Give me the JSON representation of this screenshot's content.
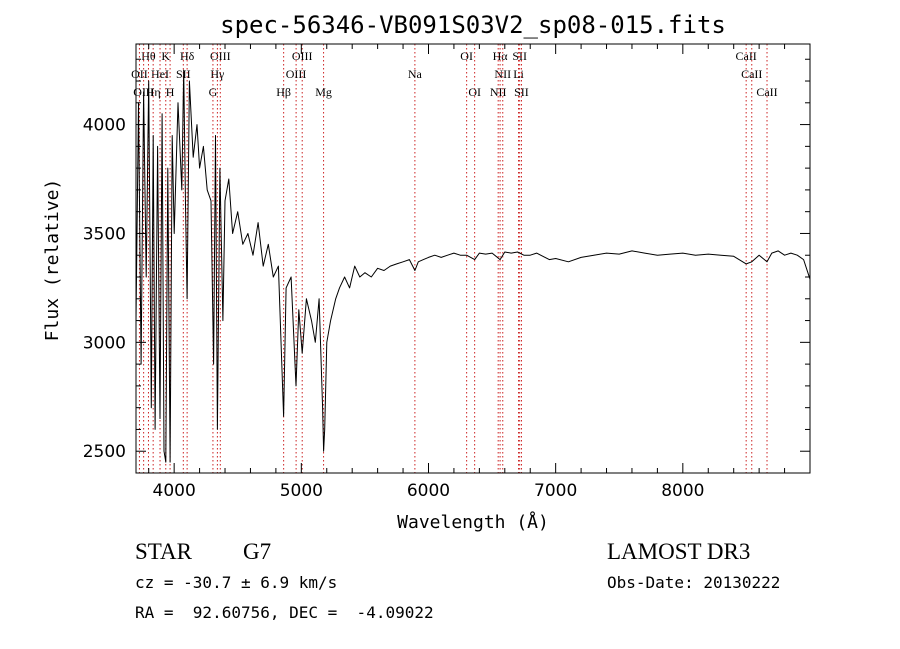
{
  "chart_data": {
    "type": "line",
    "title": "spec-56346-VB091S03V2_sp08-015.fits",
    "xlabel": "Wavelength (Å)",
    "ylabel": "Flux (relative)",
    "xlim": [
      3700,
      9000
    ],
    "ylim": [
      2400,
      4370
    ],
    "xticks": [
      4000,
      5000,
      6000,
      7000,
      8000
    ],
    "yticks": [
      2500,
      3000,
      3500,
      4000
    ],
    "colors": {
      "spectrum": "#000000",
      "lines": "#cc2222",
      "axes": "#000000"
    },
    "spectrum": {
      "name": "flux",
      "x": [
        3700,
        3720,
        3740,
        3760,
        3780,
        3800,
        3820,
        3835,
        3850,
        3870,
        3889,
        3905,
        3920,
        3934,
        3950,
        3968,
        3985,
        4000,
        4030,
        4060,
        4075,
        4090,
        4102,
        4120,
        4150,
        4180,
        4200,
        4230,
        4260,
        4290,
        4310,
        4325,
        4340,
        4360,
        4383,
        4400,
        4430,
        4460,
        4500,
        4540,
        4580,
        4620,
        4660,
        4700,
        4740,
        4780,
        4820,
        4861,
        4880,
        4920,
        4958,
        4980,
        5007,
        5040,
        5080,
        5110,
        5140,
        5167,
        5175,
        5184,
        5200,
        5230,
        5270,
        5300,
        5340,
        5380,
        5420,
        5460,
        5500,
        5550,
        5600,
        5650,
        5700,
        5750,
        5800,
        5850,
        5893,
        5920,
        5960,
        6000,
        6050,
        6100,
        6150,
        6200,
        6250,
        6300,
        6363,
        6400,
        6450,
        6500,
        6563,
        6600,
        6650,
        6700,
        6750,
        6800,
        6850,
        6900,
        6950,
        7000,
        7100,
        7200,
        7300,
        7400,
        7500,
        7600,
        7700,
        7800,
        7900,
        8000,
        8100,
        8200,
        8300,
        8400,
        8498,
        8542,
        8600,
        8662,
        8700,
        8750,
        8800,
        8850,
        8900,
        8950,
        9000
      ],
      "y": [
        3100,
        4100,
        2900,
        4150,
        3300,
        4200,
        2700,
        3950,
        2600,
        3900,
        2650,
        4050,
        2500,
        2450,
        3800,
        2450,
        3950,
        3500,
        4100,
        3700,
        4250,
        3600,
        3200,
        4200,
        3850,
        4000,
        3800,
        3900,
        3700,
        3650,
        2900,
        3950,
        2600,
        3800,
        3100,
        3650,
        3750,
        3500,
        3600,
        3450,
        3500,
        3400,
        3550,
        3350,
        3450,
        3300,
        3350,
        2660,
        3250,
        3300,
        2800,
        3150,
        2950,
        3200,
        3100,
        3000,
        3200,
        2700,
        2500,
        2600,
        3000,
        3100,
        3200,
        3250,
        3300,
        3250,
        3350,
        3300,
        3320,
        3300,
        3340,
        3330,
        3350,
        3360,
        3370,
        3380,
        3330,
        3370,
        3380,
        3390,
        3400,
        3390,
        3400,
        3410,
        3400,
        3400,
        3380,
        3410,
        3405,
        3410,
        3380,
        3415,
        3410,
        3415,
        3400,
        3400,
        3410,
        3395,
        3380,
        3385,
        3370,
        3390,
        3400,
        3410,
        3405,
        3420,
        3410,
        3400,
        3405,
        3410,
        3400,
        3405,
        3400,
        3395,
        3360,
        3370,
        3400,
        3370,
        3410,
        3420,
        3400,
        3410,
        3400,
        3380,
        3290
      ]
    },
    "spectral_lines": [
      {
        "label": "Hθ",
        "x": 3798,
        "row": 0
      },
      {
        "label": "K",
        "x": 3934,
        "row": 0
      },
      {
        "label": "Hδ",
        "x": 4102,
        "row": 0
      },
      {
        "label": "OIII",
        "x": 4363,
        "row": 0
      },
      {
        "label": "OIII",
        "x": 5007,
        "row": 0
      },
      {
        "label": "OI",
        "x": 6300,
        "row": 0
      },
      {
        "label": "Hα",
        "x": 6563,
        "row": 0
      },
      {
        "label": "SII",
        "x": 6717,
        "row": 0
      },
      {
        "label": "CaII",
        "x": 8498,
        "row": 0
      },
      {
        "label": "OII",
        "x": 3727,
        "row": 1
      },
      {
        "label": "HeI",
        "x": 3889,
        "row": 1
      },
      {
        "label": "SII",
        "x": 4072,
        "row": 1
      },
      {
        "label": "Hγ",
        "x": 4340,
        "row": 1
      },
      {
        "label": "OIII",
        "x": 4959,
        "row": 1
      },
      {
        "label": "Na",
        "x": 5893,
        "row": 1
      },
      {
        "label": "NII",
        "x": 6584,
        "row": 1
      },
      {
        "label": "Li",
        "x": 6708,
        "row": 1
      },
      {
        "label": "CaII",
        "x": 8542,
        "row": 1
      },
      {
        "label": "OIII",
        "x": 3760,
        "row": 2
      },
      {
        "label": "Hη",
        "x": 3835,
        "row": 2
      },
      {
        "label": "H",
        "x": 3968,
        "row": 2
      },
      {
        "label": "G",
        "x": 4305,
        "row": 2
      },
      {
        "label": "Hβ",
        "x": 4861,
        "row": 2
      },
      {
        "label": "Mg",
        "x": 5175,
        "row": 2
      },
      {
        "label": "OI",
        "x": 6363,
        "row": 2
      },
      {
        "label": "NII",
        "x": 6548,
        "row": 2
      },
      {
        "label": "SII",
        "x": 6731,
        "row": 2
      },
      {
        "label": "CaII",
        "x": 8662,
        "row": 2
      }
    ]
  },
  "info": {
    "object_type": "STAR",
    "spectral_class": "G7",
    "survey": "LAMOST DR3",
    "velocity": "cz = -30.7 ± 6.9 km/s",
    "obs_date": "Obs-Date: 20130222",
    "coords": "RA =  92.60756, DEC =  -4.09022"
  }
}
